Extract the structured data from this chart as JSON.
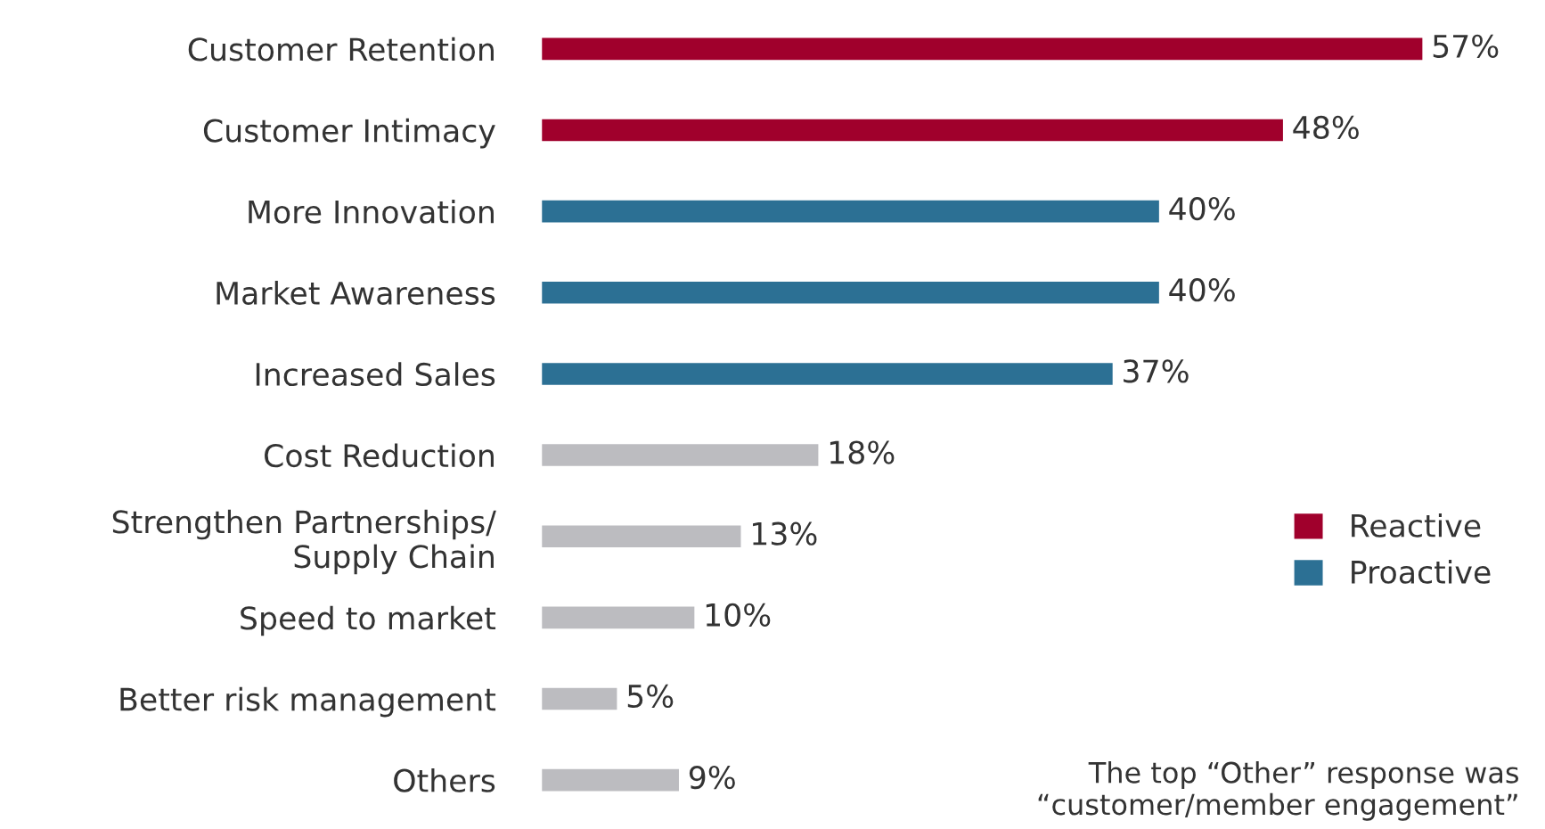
{
  "chart_data": {
    "type": "bar",
    "orientation": "horizontal",
    "categories": [
      "Customer Retention",
      "Customer Intimacy",
      "More Innovation",
      "Market Awareness",
      "Increased Sales",
      "Cost Reduction",
      "Strengthen Partnerships/\nSupply Chain",
      "Speed to market",
      "Better risk management",
      "Others"
    ],
    "series": [
      {
        "name": "Reactive",
        "color": "#a0002c",
        "values": [
          57,
          48,
          null,
          null,
          null,
          null,
          null,
          null,
          null,
          null
        ],
        "value_labels": [
          "57%",
          "48%",
          null,
          null,
          null,
          null,
          null,
          null,
          null,
          null
        ]
      },
      {
        "name": "Proactive",
        "color": "#2c7094",
        "values": [
          null,
          null,
          40,
          40,
          37,
          null,
          null,
          null,
          null,
          null
        ],
        "value_labels": [
          null,
          null,
          "40%",
          "40%",
          "37%",
          null,
          null,
          null,
          null,
          null
        ]
      },
      {
        "color": "#bcbcc0",
        "values": [
          null,
          null,
          null,
          null,
          null,
          18,
          13,
          10,
          5,
          9
        ],
        "value_labels": [
          null,
          null,
          null,
          null,
          null,
          "18%",
          "13%",
          "10%",
          "5%",
          "9%"
        ]
      }
    ],
    "legend": "bottom right",
    "grid": false,
    "annotations": [
      "The top “Other” response was\n“customer/member engagement”"
    ]
  }
}
